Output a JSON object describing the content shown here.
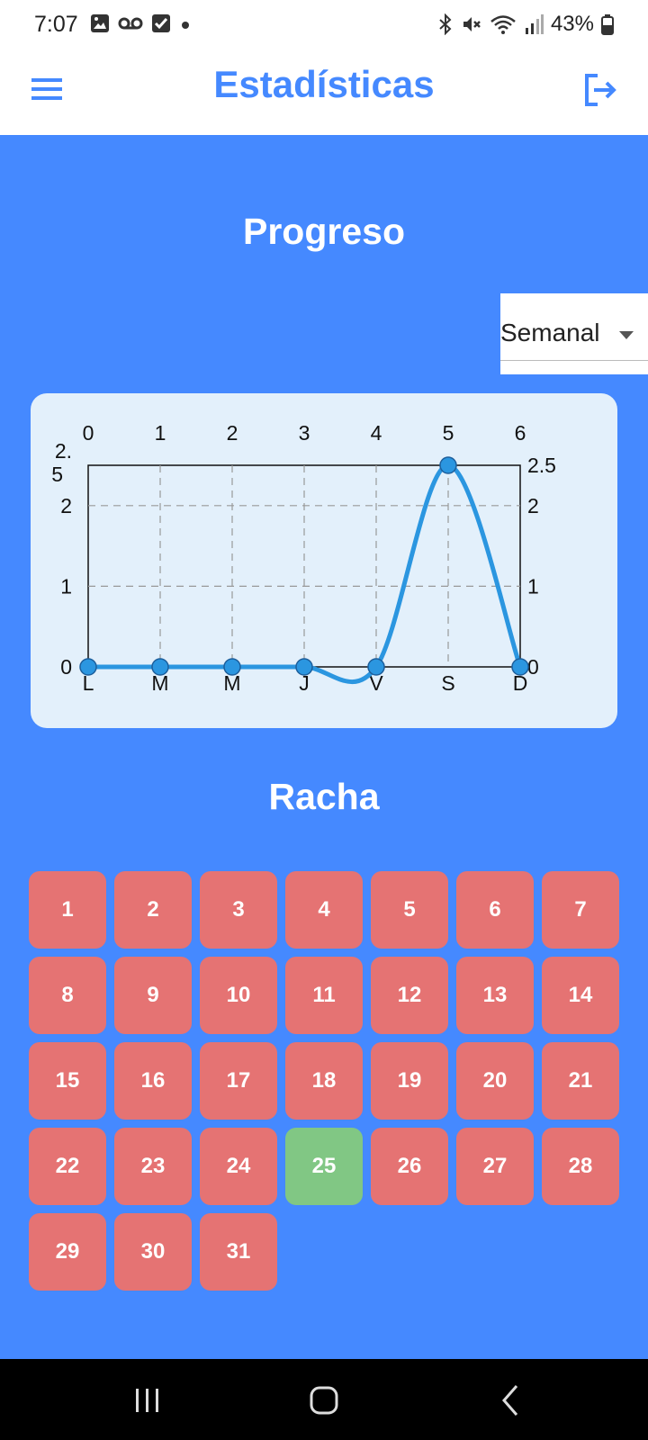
{
  "status_bar": {
    "time": "7:07",
    "battery": "43%",
    "icons_left": [
      "image-icon",
      "voicemail-icon",
      "checkbox-icon",
      "dot-icon"
    ],
    "icons_right": [
      "bluetooth-icon",
      "mute-icon",
      "wifi-icon",
      "signal-icon",
      "battery-icon"
    ]
  },
  "app_bar": {
    "title": "Estadísticas",
    "accent_color": "#4589FF"
  },
  "progress": {
    "title": "Progreso",
    "period": "Semanal"
  },
  "chart_data": {
    "type": "line",
    "categories": [
      "L",
      "M",
      "M",
      "J",
      "V",
      "S",
      "D"
    ],
    "top_ticks": [
      "0",
      "1",
      "2",
      "3",
      "4",
      "5",
      "6"
    ],
    "y_ticks_left": [
      "2.\n5",
      "2",
      "1",
      "0"
    ],
    "y_ticks_right": [
      "2.5",
      "2",
      "1",
      "0"
    ],
    "series": [
      {
        "values": [
          0,
          0,
          0,
          0,
          0,
          2.5,
          0
        ],
        "color": "#2B96E0"
      }
    ],
    "ylim": [
      0,
      2.5
    ],
    "grid": true,
    "curved": true
  },
  "streak": {
    "title": "Racha",
    "days": [
      "1",
      "2",
      "3",
      "4",
      "5",
      "6",
      "7",
      "8",
      "9",
      "10",
      "11",
      "12",
      "13",
      "14",
      "15",
      "16",
      "17",
      "18",
      "19",
      "20",
      "21",
      "22",
      "23",
      "24",
      "25",
      "26",
      "27",
      "28",
      "29",
      "30",
      "31"
    ],
    "completed_days": [
      "25"
    ],
    "missed_color": "#E57373",
    "completed_color": "#81C784"
  }
}
